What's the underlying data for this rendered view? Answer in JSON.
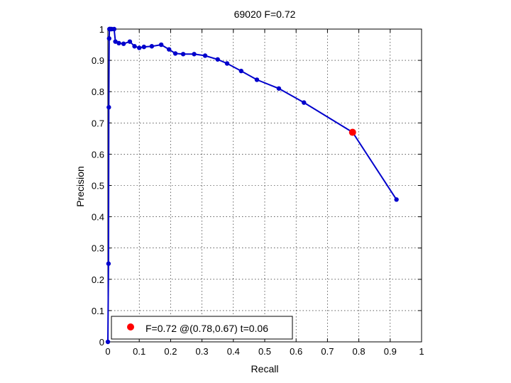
{
  "chart_data": {
    "type": "line",
    "title": "69020 F=0.72",
    "xlabel": "Recall",
    "ylabel": "Precision",
    "xlim": [
      0,
      1
    ],
    "ylim": [
      0,
      1
    ],
    "grid": true,
    "x_ticks": [
      "0",
      "0.1",
      "0.2",
      "0.3",
      "0.4",
      "0.5",
      "0.6",
      "0.7",
      "0.8",
      "0.9",
      "1"
    ],
    "y_ticks": [
      "0",
      "0.1",
      "0.2",
      "0.3",
      "0.4",
      "0.5",
      "0.6",
      "0.7",
      "0.8",
      "0.9",
      "1"
    ],
    "series_color": "#0000cc",
    "highlight_color": "#ff0000",
    "pr_curve": {
      "recall": [
        0.0,
        0.002,
        0.003,
        0.004,
        0.005,
        0.006,
        0.008,
        0.012,
        0.02,
        0.024,
        0.035,
        0.05,
        0.07,
        0.085,
        0.1,
        0.115,
        0.14,
        0.17,
        0.195,
        0.215,
        0.24,
        0.275,
        0.31,
        0.35,
        0.38,
        0.425,
        0.475,
        0.545,
        0.625,
        0.78,
        0.92
      ],
      "precision": [
        0.0,
        0.25,
        0.75,
        0.97,
        1.0,
        1.0,
        1.0,
        1.0,
        1.0,
        0.96,
        0.955,
        0.953,
        0.96,
        0.945,
        0.94,
        0.943,
        0.945,
        0.95,
        0.935,
        0.922,
        0.92,
        0.92,
        0.915,
        0.903,
        0.89,
        0.866,
        0.838,
        0.81,
        0.765,
        0.67,
        0.455
      ]
    },
    "best_point": {
      "recall": 0.78,
      "precision": 0.67
    },
    "legend": {
      "position": "bottom-left",
      "text": "F=0.72 @(0.78,0.67) t=0.06"
    }
  }
}
